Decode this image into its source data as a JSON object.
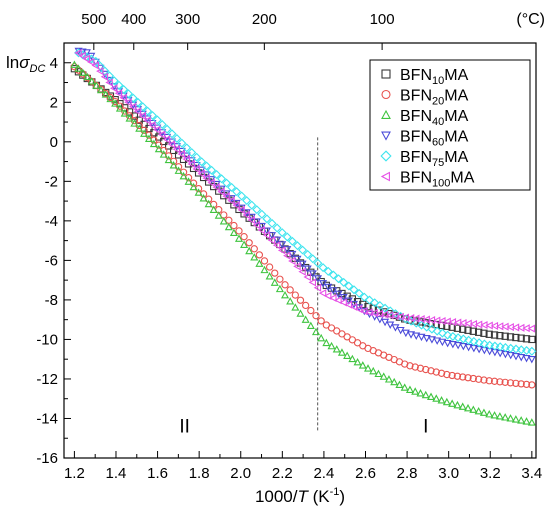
{
  "chart_data": {
    "type": "scatter",
    "x_axis": {
      "label_prefix": "1000/",
      "label_italic": "T",
      "label_unit_base": " (K",
      "label_unit_sup": "-1",
      "label_unit_close": ")",
      "range": [
        1.15,
        3.42
      ],
      "ticks": [
        1.2,
        1.4,
        1.6,
        1.8,
        2.0,
        2.2,
        2.4,
        2.6,
        2.8,
        3.0,
        3.2,
        3.4
      ],
      "tick_labels": [
        "1.2",
        "1.4",
        "1.6",
        "1.8",
        "2.0",
        "2.2",
        "2.4",
        "2.6",
        "2.8",
        "3.0",
        "3.2",
        "3.4"
      ]
    },
    "y_axis": {
      "label_prefix": "ln",
      "label_sigma": "σ",
      "label_sub": "DC",
      "range": [
        -16,
        5
      ],
      "ticks": [
        -16,
        -14,
        -12,
        -10,
        -8,
        -6,
        -4,
        -2,
        0,
        2,
        4
      ],
      "tick_labels": [
        "-16",
        "-14",
        "-12",
        "-10",
        "-8",
        "-6",
        "-4",
        "-2",
        "0",
        "2",
        "4"
      ]
    },
    "top_axis": {
      "unit_label": "(°C)",
      "tick_labels": [
        "500",
        "400",
        "300",
        "200",
        "100"
      ],
      "celsius": [
        500,
        400,
        300,
        200,
        100
      ]
    },
    "divider_x": 2.37,
    "region_labels": [
      {
        "text": "II",
        "x": 1.73,
        "y": -14.7
      },
      {
        "text": "I",
        "x": 2.89,
        "y": -14.7
      }
    ],
    "legend": {
      "placement": "top-right"
    },
    "series": [
      {
        "name_base": "BFN",
        "name_sub": "10",
        "name_tail": "MA",
        "marker": "square",
        "color": "#3a3a3a",
        "points": [
          [
            1.2,
            3.7
          ],
          [
            1.4,
            2.1
          ],
          [
            1.6,
            0.3
          ],
          [
            1.8,
            -1.6
          ],
          [
            2.0,
            -3.5
          ],
          [
            2.2,
            -5.3
          ],
          [
            2.4,
            -7.2
          ],
          [
            2.6,
            -8.3
          ],
          [
            2.8,
            -9.0
          ],
          [
            3.0,
            -9.35
          ],
          [
            3.2,
            -9.75
          ],
          [
            3.4,
            -10.0
          ]
        ]
      },
      {
        "name_base": "BFN",
        "name_sub": "20",
        "name_tail": "MA",
        "marker": "circle",
        "color": "#e8524e",
        "points": [
          [
            1.2,
            3.8
          ],
          [
            1.4,
            2.0
          ],
          [
            1.6,
            -0.1
          ],
          [
            1.8,
            -2.4
          ],
          [
            2.0,
            -4.6
          ],
          [
            2.2,
            -7.1
          ],
          [
            2.4,
            -9.2
          ],
          [
            2.6,
            -10.4
          ],
          [
            2.8,
            -11.3
          ],
          [
            3.0,
            -11.8
          ],
          [
            3.2,
            -12.1
          ],
          [
            3.4,
            -12.3
          ]
        ]
      },
      {
        "name_base": "BFN",
        "name_sub": "40",
        "name_tail": "MA",
        "marker": "triangle-up",
        "color": "#3fc43f",
        "points": [
          [
            1.2,
            3.9
          ],
          [
            1.4,
            1.9
          ],
          [
            1.6,
            -0.3
          ],
          [
            1.8,
            -2.6
          ],
          [
            2.0,
            -5.0
          ],
          [
            2.2,
            -7.6
          ],
          [
            2.4,
            -10.1
          ],
          [
            2.6,
            -11.4
          ],
          [
            2.8,
            -12.5
          ],
          [
            3.0,
            -13.2
          ],
          [
            3.2,
            -13.8
          ],
          [
            3.4,
            -14.2
          ]
        ]
      },
      {
        "name_base": "BFN",
        "name_sub": "60",
        "name_tail": "MA",
        "marker": "triangle-down",
        "color": "#4b4bd9",
        "points": [
          [
            1.22,
            4.6
          ],
          [
            1.27,
            4.5
          ],
          [
            1.4,
            2.7
          ],
          [
            1.6,
            0.7
          ],
          [
            1.8,
            -1.3
          ],
          [
            2.0,
            -3.3
          ],
          [
            2.2,
            -5.2
          ],
          [
            2.4,
            -7.2
          ],
          [
            2.6,
            -8.6
          ],
          [
            2.8,
            -9.7
          ],
          [
            3.0,
            -10.2
          ],
          [
            3.2,
            -10.6
          ],
          [
            3.4,
            -11.0
          ]
        ]
      },
      {
        "name_base": "BFN",
        "name_sub": "75",
        "name_tail": "MA",
        "marker": "diamond",
        "color": "#3de4ee",
        "points": [
          [
            1.22,
            4.5
          ],
          [
            1.3,
            4.1
          ],
          [
            1.4,
            3.0
          ],
          [
            1.6,
            1.1
          ],
          [
            1.8,
            -0.9
          ],
          [
            2.0,
            -2.7
          ],
          [
            2.2,
            -4.6
          ],
          [
            2.4,
            -6.4
          ],
          [
            2.6,
            -7.9
          ],
          [
            2.8,
            -9.0
          ],
          [
            3.0,
            -9.8
          ],
          [
            3.2,
            -10.3
          ],
          [
            3.4,
            -10.6
          ]
        ]
      },
      {
        "name_base": "BFN",
        "name_sub": "100",
        "name_tail": "MA",
        "marker": "triangle-left",
        "color": "#e64fe6",
        "points": [
          [
            1.22,
            4.5
          ],
          [
            1.3,
            3.9
          ],
          [
            1.4,
            2.6
          ],
          [
            1.6,
            0.6
          ],
          [
            1.8,
            -1.5
          ],
          [
            2.0,
            -3.4
          ],
          [
            2.2,
            -5.5
          ],
          [
            2.4,
            -7.7
          ],
          [
            2.6,
            -8.6
          ],
          [
            2.8,
            -8.9
          ],
          [
            3.0,
            -9.1
          ],
          [
            3.2,
            -9.3
          ],
          [
            3.4,
            -9.45
          ]
        ]
      }
    ]
  }
}
